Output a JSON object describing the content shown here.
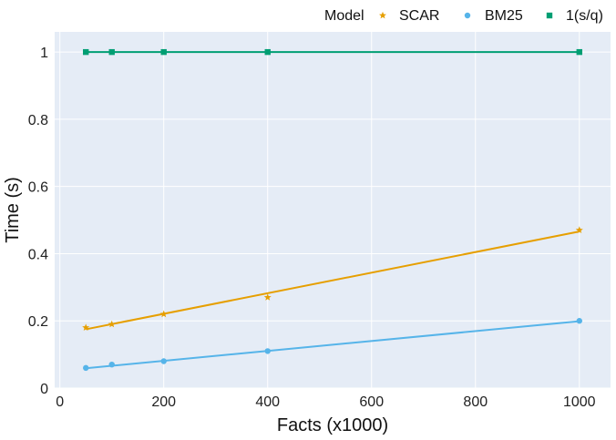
{
  "chart_data": {
    "type": "line",
    "xlabel": "Facts (x1000)",
    "ylabel": "Time (s)",
    "xlim": [
      -10,
      1060
    ],
    "ylim": [
      0,
      1.06
    ],
    "xticks": [
      0,
      200,
      400,
      600,
      800,
      1000
    ],
    "yticks": [
      0,
      0.2,
      0.4,
      0.6,
      0.8,
      1
    ],
    "xtick_labels": [
      "0",
      "200",
      "400",
      "600",
      "800",
      "1000"
    ],
    "ytick_labels": [
      "0",
      "0.2",
      "0.4",
      "0.6",
      "0.8",
      "1"
    ],
    "grid": true,
    "legend": {
      "title": "Model",
      "position": "top-right"
    },
    "x": [
      50,
      100,
      200,
      400,
      1000
    ],
    "series": [
      {
        "name": "SCAR",
        "marker": "star",
        "color": "#E69F00",
        "values": [
          0.18,
          0.19,
          0.22,
          0.27,
          0.47
        ],
        "fit": [
          0.175,
          0.466
        ]
      },
      {
        "name": "BM25",
        "marker": "circle",
        "color": "#56B4E9",
        "values": [
          0.06,
          0.07,
          0.08,
          0.11,
          0.2
        ],
        "fit": [
          0.059,
          0.199
        ]
      },
      {
        "name": "1(s/q)",
        "marker": "square",
        "color": "#009E73",
        "values": [
          1,
          1,
          1,
          1,
          1
        ],
        "fit": [
          1,
          1
        ]
      }
    ]
  },
  "colors": {
    "panel": "#E5ECF6",
    "grid": "#FFFFFF"
  }
}
